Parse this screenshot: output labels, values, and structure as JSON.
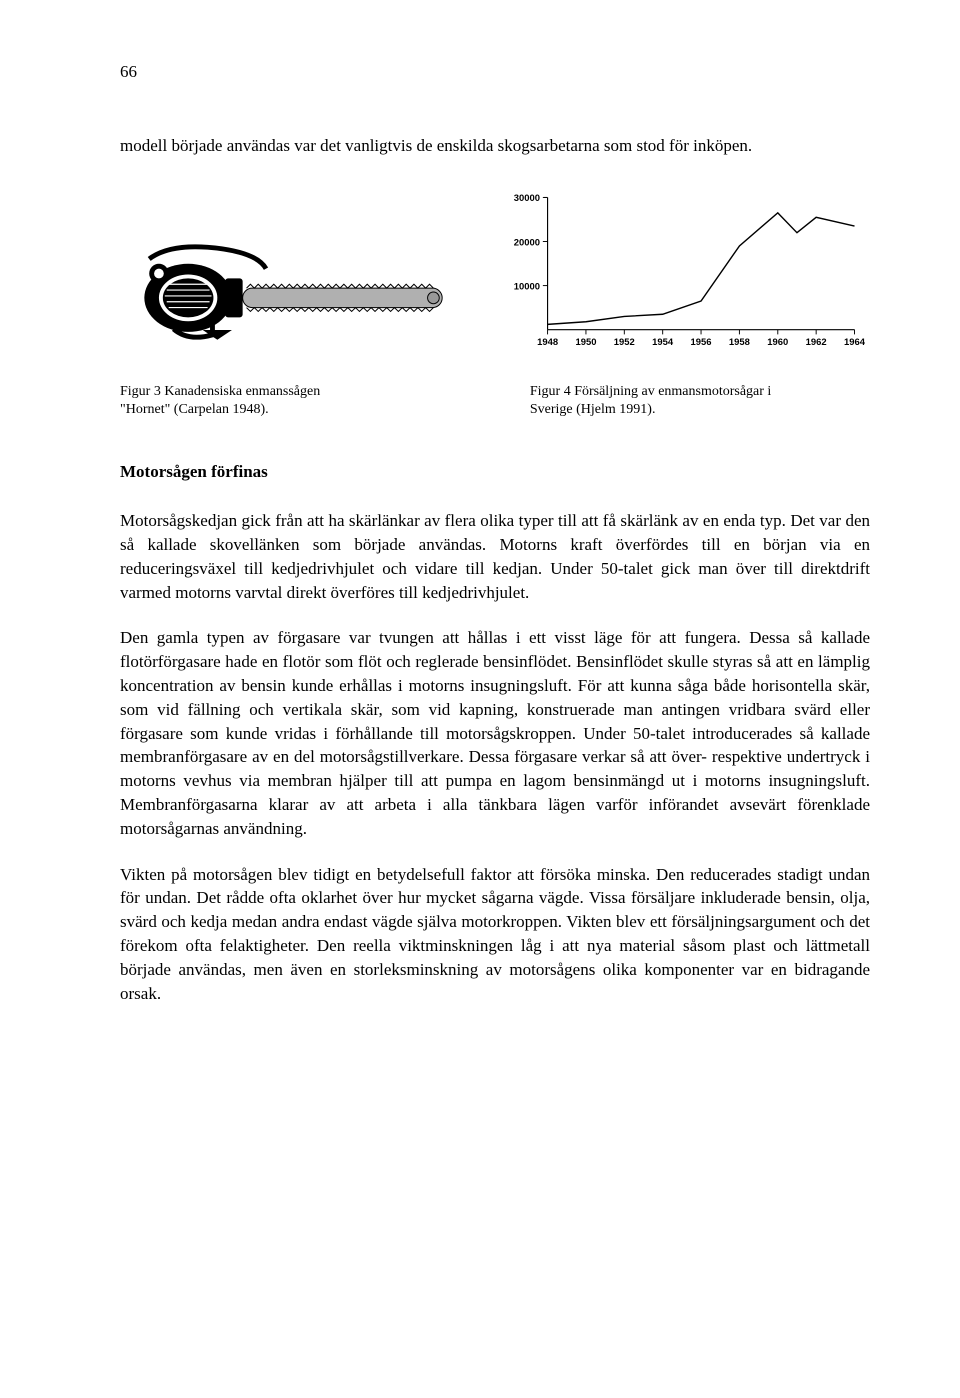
{
  "page_number": "66",
  "intro": "modell började användas var det vanligtvis de enskilda skogsarbetarna som stod för inköpen.",
  "chart": {
    "type": "line",
    "x_values": [
      1948,
      1950,
      1952,
      1954,
      1956,
      1958,
      1960,
      1962,
      1964
    ],
    "x_labels": [
      "1948",
      "1950",
      "1952",
      "1954",
      "1956",
      "1958",
      "1960",
      "1962",
      "1964"
    ],
    "y_ticks": [
      10000,
      20000,
      30000
    ],
    "y_labels": [
      "10000",
      "20000",
      "30000"
    ],
    "data_points": [
      {
        "x": 1948,
        "y": 1200
      },
      {
        "x": 1950,
        "y": 1800
      },
      {
        "x": 1952,
        "y": 3000
      },
      {
        "x": 1954,
        "y": 3500
      },
      {
        "x": 1956,
        "y": 6500
      },
      {
        "x": 1958,
        "y": 19000
      },
      {
        "x": 1960,
        "y": 26500
      },
      {
        "x": 1961,
        "y": 22000
      },
      {
        "x": 1962,
        "y": 25500
      },
      {
        "x": 1964,
        "y": 23500
      }
    ],
    "line_color": "#000000",
    "line_width": 1.5,
    "axis_color": "#000000",
    "background_color": "#ffffff",
    "tick_fontsize": 10,
    "xlim": [
      1948,
      1964
    ],
    "ylim": [
      0,
      30000
    ]
  },
  "caption_left_line1": "Figur 3 Kanadensiska enmanssågen",
  "caption_left_line2": "\"Hornet\" (Carpelan 1948).",
  "caption_right_line1": "Figur 4 Försäljning av enmansmotorsågar i",
  "caption_right_line2": "Sverige (Hjelm 1991).",
  "section_heading": "Motorsågen förfinas",
  "para1": "Motorsågskedjan gick från att ha skärlänkar av flera olika typer till att få skärlänk av en enda typ. Det var den så kallade skovellänken som började användas. Motorns kraft överfördes till en början via en reduceringsväxel till kedjedrivhjulet och vidare till kedjan. Under 50-talet gick man över till direktdrift varmed motorns varvtal direkt överföres till kedjedrivhjulet.",
  "para2": "Den gamla typen av förgasare var tvungen att hållas i ett visst läge för att fungera. Dessa så kallade flotörförgasare hade en flotör som flöt och reglerade bensinflödet. Bensinflödet skulle styras så att en lämplig koncentration av bensin kunde erhållas i motorns insugningsluft. För att kunna såga både horisontella skär, som vid fällning och vertikala skär, som vid kapning, konstruerade man antingen vridbara svärd eller förgasare som kunde vridas i förhållande till motorsågskroppen. Under 50-talet introducerades så kallade membranförgasare av en del motorsågstillverkare. Dessa förgasare verkar så att över- respektive undertryck i motorns vevhus via membran hjälper till att pumpa en lagom bensinmängd ut i motorns insugningsluft. Membranförgasarna klarar av att arbeta i alla tänkbara lägen varför införandet avsevärt förenklade motorsågarnas användning.",
  "para3": "Vikten på motorsågen blev tidigt en betydelsefull faktor att försöka minska. Den reducerades stadigt undan för undan. Det rådde ofta oklarhet över hur mycket sågarna vägde. Vissa försäljare inkluderade bensin, olja, svärd och kedja medan andra endast vägde själva motorkroppen. Vikten blev ett försäljningsargument och det förekom ofta felaktigheter. Den reella viktminskningen låg i att nya material såsom plast och lättmetall började användas, men även en storleksminskning av motorsågens olika komponenter var en bidragande orsak."
}
